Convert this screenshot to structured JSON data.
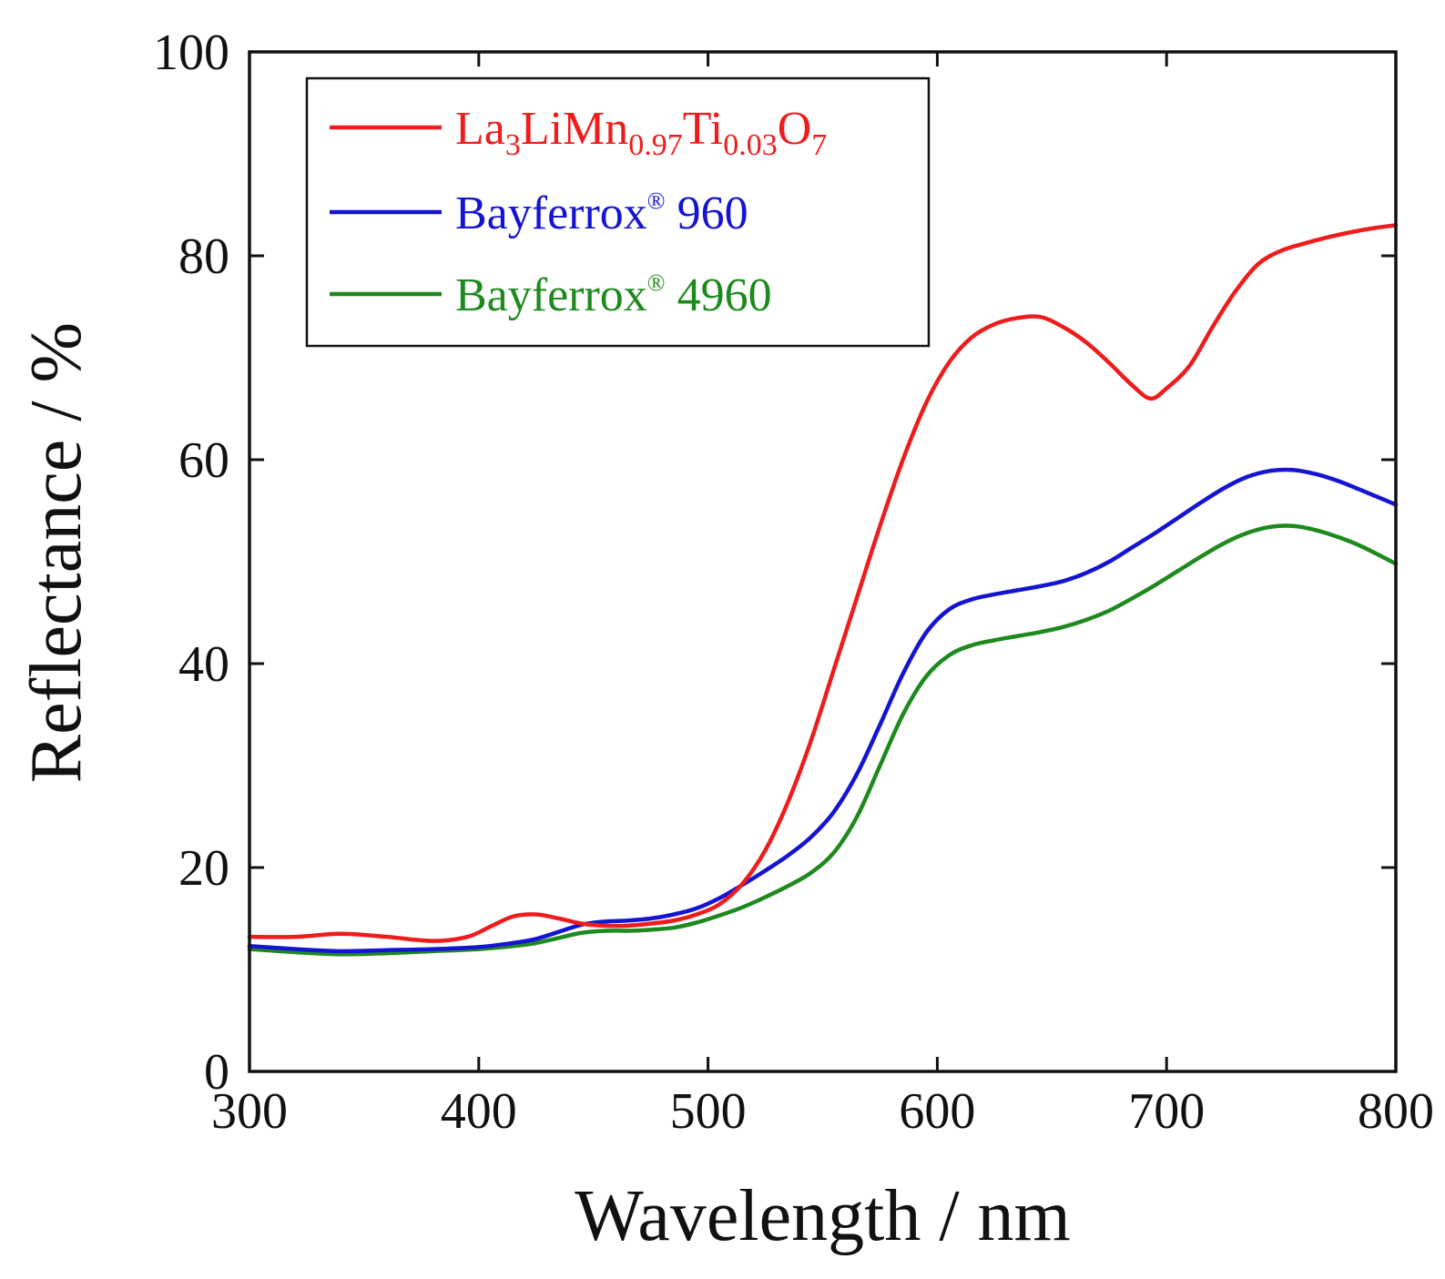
{
  "chart_data": {
    "type": "line",
    "title": "",
    "xlabel": "Wavelength / nm",
    "ylabel": "Reflectance / %",
    "xlim": [
      300,
      800
    ],
    "ylim": [
      0,
      100
    ],
    "xticks": [
      "300",
      "400",
      "500",
      "600",
      "700",
      "800"
    ],
    "yticks": [
      "0",
      "20",
      "40",
      "60",
      "80",
      "100"
    ],
    "grid": false,
    "legend_position": "top-left",
    "series": [
      {
        "name": "La3LiMn0.97Ti0.03O7",
        "label_parts": [
          {
            "text": "La",
            "sub": false
          },
          {
            "text": "3",
            "sub": true
          },
          {
            "text": "LiMn",
            "sub": false
          },
          {
            "text": "0.97",
            "sub": true
          },
          {
            "text": "Ti",
            "sub": false
          },
          {
            "text": "0.03",
            "sub": true
          },
          {
            "text": "O",
            "sub": false
          },
          {
            "text": "7",
            "sub": true
          }
        ],
        "color": "#ee1c1c",
        "x": [
          300,
          320,
          340,
          360,
          380,
          395,
          405,
          415,
          425,
          435,
          445,
          455,
          465,
          475,
          485,
          495,
          505,
          515,
          525,
          535,
          545,
          555,
          565,
          575,
          585,
          595,
          605,
          615,
          625,
          635,
          645,
          655,
          665,
          675,
          685,
          693,
          700,
          710,
          720,
          730,
          740,
          750,
          760,
          770,
          780,
          790,
          800
        ],
        "y": [
          13.2,
          13.2,
          13.5,
          13.2,
          12.8,
          13.2,
          14.2,
          15.2,
          15.4,
          15.0,
          14.5,
          14.3,
          14.3,
          14.5,
          14.8,
          15.4,
          16.4,
          18.4,
          21.7,
          26.5,
          32.5,
          39.5,
          46.5,
          53.5,
          60.0,
          65.5,
          69.5,
          72.0,
          73.3,
          73.9,
          74.0,
          73.0,
          71.5,
          69.5,
          67.3,
          66.0,
          67.0,
          69.2,
          73.0,
          76.5,
          79.2,
          80.5,
          81.2,
          81.8,
          82.3,
          82.7,
          83.0
        ]
      },
      {
        "name": "Bayferrox® 960",
        "label_parts": [
          {
            "text": "Bayferrox",
            "sub": false
          },
          {
            "text": "®",
            "sup": true
          },
          {
            "text": " 960",
            "sub": false
          }
        ],
        "color": "#1414d2",
        "x": [
          300,
          320,
          340,
          360,
          380,
          400,
          415,
          425,
          435,
          445,
          455,
          465,
          475,
          485,
          495,
          505,
          515,
          525,
          535,
          545,
          555,
          565,
          575,
          585,
          595,
          605,
          615,
          625,
          635,
          645,
          655,
          665,
          675,
          685,
          695,
          705,
          715,
          725,
          735,
          745,
          755,
          765,
          775,
          785,
          800
        ],
        "y": [
          12.3,
          12.0,
          11.8,
          11.9,
          12.0,
          12.2,
          12.6,
          13.0,
          13.7,
          14.4,
          14.7,
          14.8,
          15.0,
          15.4,
          16.0,
          17.0,
          18.3,
          19.7,
          21.2,
          23.0,
          25.5,
          29.2,
          34.0,
          39.0,
          43.0,
          45.3,
          46.3,
          46.8,
          47.2,
          47.6,
          48.1,
          48.9,
          50.0,
          51.4,
          52.8,
          54.3,
          55.8,
          57.2,
          58.3,
          58.9,
          59.0,
          58.6,
          57.9,
          57.0,
          55.6
        ]
      },
      {
        "name": "Bayferrox® 4960",
        "label_parts": [
          {
            "text": "Bayferrox",
            "sub": false
          },
          {
            "text": "®",
            "sup": true
          },
          {
            "text": " 4960",
            "sub": false
          }
        ],
        "color": "#1e8a1e",
        "x": [
          300,
          320,
          340,
          360,
          380,
          400,
          415,
          425,
          435,
          445,
          455,
          465,
          475,
          485,
          495,
          505,
          515,
          525,
          535,
          545,
          555,
          565,
          575,
          585,
          595,
          605,
          615,
          625,
          635,
          645,
          655,
          665,
          675,
          685,
          695,
          705,
          715,
          725,
          735,
          745,
          755,
          765,
          775,
          785,
          800
        ],
        "y": [
          12.0,
          11.7,
          11.5,
          11.6,
          11.8,
          12.0,
          12.3,
          12.6,
          13.1,
          13.6,
          13.8,
          13.8,
          13.9,
          14.1,
          14.6,
          15.3,
          16.1,
          17.1,
          18.2,
          19.5,
          21.5,
          25.0,
          30.0,
          35.0,
          38.7,
          40.8,
          41.8,
          42.3,
          42.7,
          43.1,
          43.6,
          44.3,
          45.2,
          46.4,
          47.7,
          49.1,
          50.5,
          51.8,
          52.8,
          53.4,
          53.5,
          53.1,
          52.4,
          51.5,
          49.8
        ]
      }
    ]
  }
}
